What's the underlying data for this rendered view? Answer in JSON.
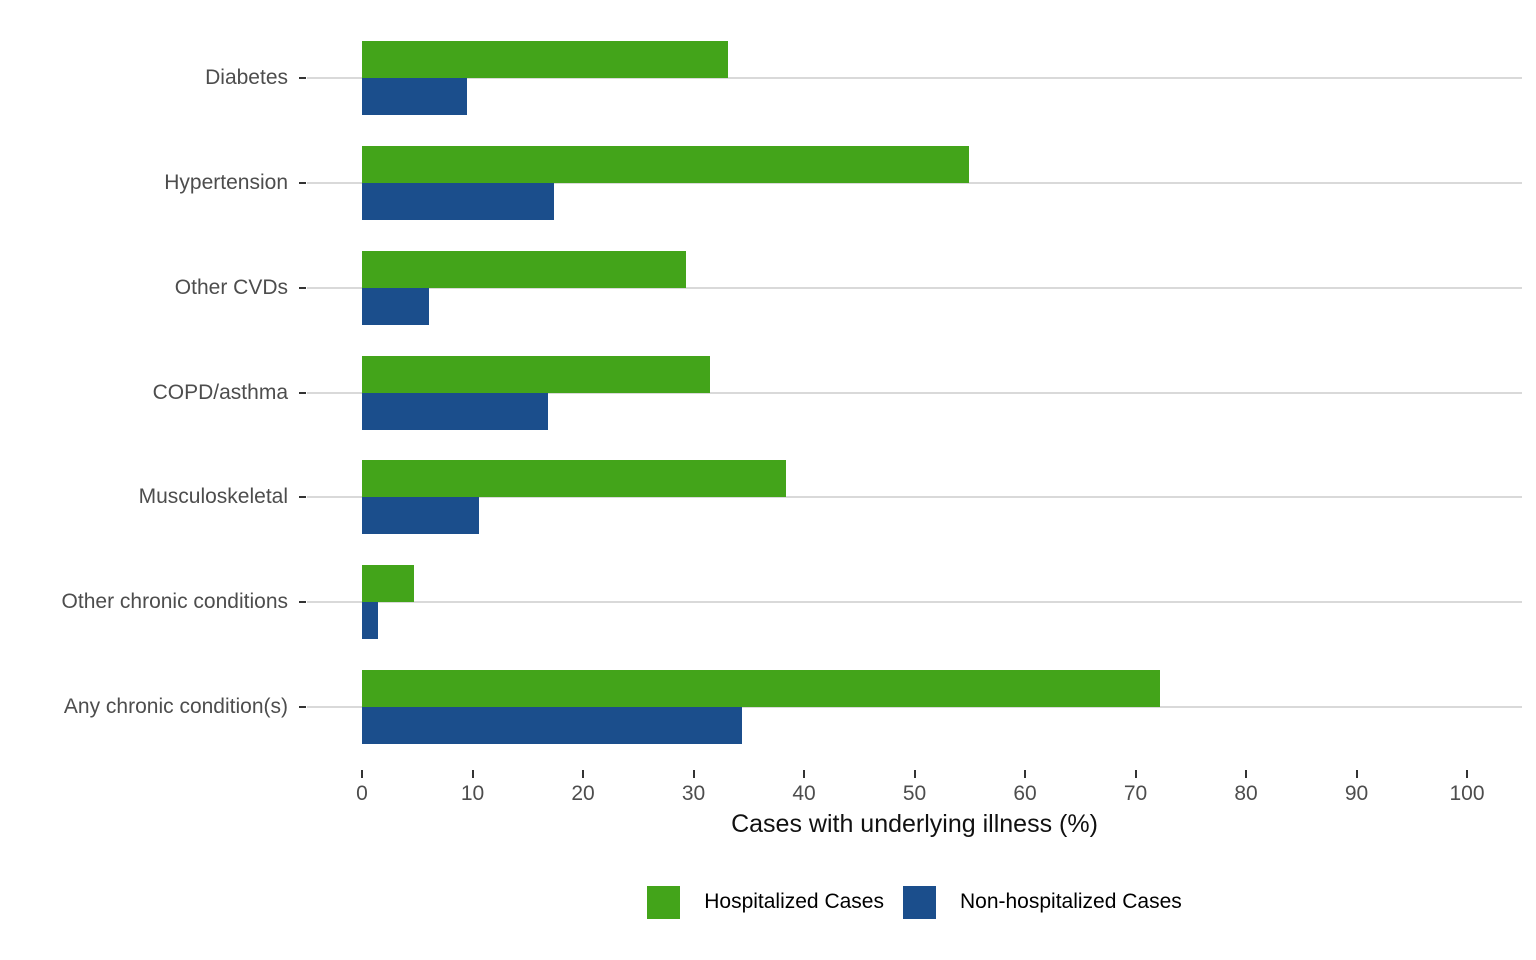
{
  "chart_data": {
    "type": "bar",
    "orientation": "horizontal",
    "title": "",
    "xlabel": "Cases with underlying illness (%)",
    "ylabel": "",
    "xlim": [
      0,
      100
    ],
    "xticks": [
      0,
      10,
      20,
      30,
      40,
      50,
      60,
      70,
      80,
      90,
      100
    ],
    "grid": "horizontal category gridlines only",
    "legend_position": "bottom",
    "categories": [
      "Diabetes",
      "Hypertension",
      "Other CVDs",
      "COPD/asthma",
      "Musculoskeletal",
      "Other chronic conditions",
      "Any chronic condition(s)"
    ],
    "series": [
      {
        "name": "Hospitalized Cases",
        "color": "#43a41a",
        "values": [
          33.1,
          54.9,
          29.3,
          31.5,
          38.4,
          4.7,
          72.2
        ]
      },
      {
        "name": "Non-hospitalized Cases",
        "color": "#1b4e8c",
        "values": [
          9.5,
          17.4,
          6.1,
          16.8,
          10.6,
          1.4,
          34.4
        ]
      }
    ],
    "colors": {
      "gridline": "#d9d9d9",
      "tick_mark": "#333333",
      "tick_label": "#4d4d4d",
      "category_label": "#4d4d4d",
      "axis_title": "#111111",
      "background": "#ffffff"
    }
  }
}
